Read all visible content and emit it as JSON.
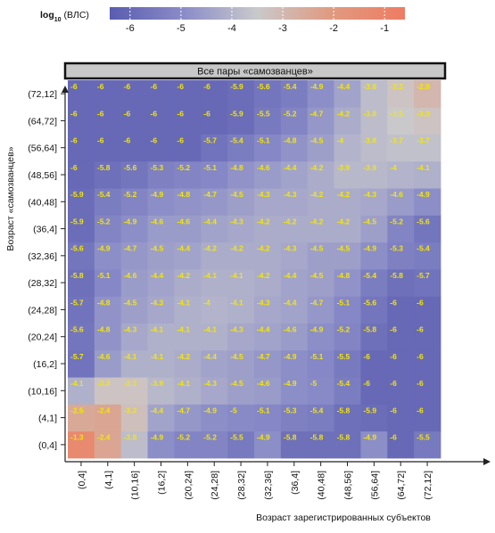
{
  "chart_data": {
    "type": "heatmap",
    "colorbar": {
      "label_prefix": "log",
      "label_subscript": "10",
      "label_suffix": "(ВЛС)",
      "ticks": [
        "-6",
        "-5",
        "-4",
        "-3",
        "-2",
        "-1"
      ],
      "tick_values": [
        -6,
        -5,
        -4,
        -3,
        -2,
        -1
      ],
      "range": [
        -6.4,
        -0.6
      ],
      "colors": [
        "#5a5cb0",
        "#8a8cc8",
        "#c9c9cc",
        "#e09a80",
        "#ee7c62"
      ]
    },
    "panel_title": "Все пары «самозванцев»",
    "xlabel": "Возраст зарегистрированных субъектов",
    "ylabel": "Возраст «самозванцев»",
    "x_categories": [
      "(0,4]",
      "(4,1]",
      "(10,16]",
      "(16,2]",
      "(20,24]",
      "(24,28]",
      "(28,32]",
      "(32,36]",
      "(36,4]",
      "(40,48]",
      "(48,56]",
      "(56,64]",
      "(64,72]",
      "(72,12]"
    ],
    "y_categories": [
      "(0,4]",
      "(4,1]",
      "(10,16]",
      "(16,2]",
      "(20,24]",
      "(24,28]",
      "(28,32]",
      "(32,36]",
      "(36,4]",
      "(40,48]",
      "(48,56]",
      "(56,64]",
      "(64,72]",
      "(72,12]"
    ],
    "values": [
      [
        -1.3,
        -2.4,
        -3.8,
        -4.9,
        -5.2,
        -5.2,
        -5.5,
        -4.9,
        -5.8,
        -5.8,
        -5.8,
        -4.9,
        -6,
        -5.5
      ],
      [
        -2.5,
        -2.4,
        -3.2,
        -4.4,
        -4.7,
        -4.9,
        -5,
        -5.1,
        -5.3,
        -5.4,
        -5.8,
        -5.9,
        -6,
        -6
      ],
      [
        -4.1,
        -3.3,
        -3.3,
        -3.9,
        -4.1,
        -4.3,
        -4.5,
        -4.6,
        -4.9,
        -5,
        -5.4,
        -6,
        -6,
        -6
      ],
      [
        -5.7,
        -4.6,
        -4.1,
        -4.1,
        -4.2,
        -4.4,
        -4.5,
        -4.7,
        -4.9,
        -5.1,
        -5.5,
        -6,
        -6,
        -6
      ],
      [
        -5.6,
        -4.8,
        -4.3,
        -4.1,
        -4.1,
        -4.1,
        -4.3,
        -4.4,
        -4.6,
        -4.9,
        -5.2,
        -5.8,
        -6,
        -6
      ],
      [
        -5.7,
        -4.8,
        -4.5,
        -4.3,
        -4.1,
        -4,
        -4.1,
        -4.3,
        -4.4,
        -4.7,
        -5.1,
        -5.6,
        -6,
        -6
      ],
      [
        -5.8,
        -5.1,
        -4.6,
        -4.4,
        -4.2,
        -4.1,
        -4.1,
        -4.2,
        -4.4,
        -4.5,
        -4.8,
        -5.4,
        -5.8,
        -5.7
      ],
      [
        -5.6,
        -4.9,
        -4.7,
        -4.5,
        -4.4,
        -4.2,
        -4.2,
        -4.2,
        -4.3,
        -4.5,
        -4.5,
        -4.9,
        -5.3,
        -5.4
      ],
      [
        -5.9,
        -5.2,
        -4.9,
        -4.6,
        -4.6,
        -4.4,
        -4.3,
        -4.2,
        -4.2,
        -4.2,
        -4.2,
        -4.5,
        -5.2,
        -5.6
      ],
      [
        -5.9,
        -5.4,
        -5.2,
        -4.9,
        -4.8,
        -4.7,
        -4.5,
        -4.3,
        -4.3,
        -4.2,
        -4.2,
        -4.3,
        -4.6,
        -4.9
      ],
      [
        -6,
        -5.8,
        -5.6,
        -5.3,
        -5.2,
        -5.1,
        -4.8,
        -4.6,
        -4.4,
        -4.2,
        -3.9,
        -3.9,
        -4,
        -4.1
      ],
      [
        -6,
        -6,
        -6,
        -6,
        -6,
        -5.7,
        -5.4,
        -5.1,
        -4.8,
        -4.5,
        -4,
        -3.8,
        -3.7,
        -3.7
      ],
      [
        -6,
        -6,
        -6,
        -6,
        -6,
        -6,
        -5.9,
        -5.5,
        -5.2,
        -4.7,
        -4.2,
        -3.8,
        -3.5,
        -3.3
      ],
      [
        -6,
        -6,
        -6,
        -6,
        -6,
        -6,
        -5.9,
        -5.6,
        -5.4,
        -4.9,
        -4.4,
        -3.8,
        -3.3,
        -2.9
      ]
    ]
  }
}
